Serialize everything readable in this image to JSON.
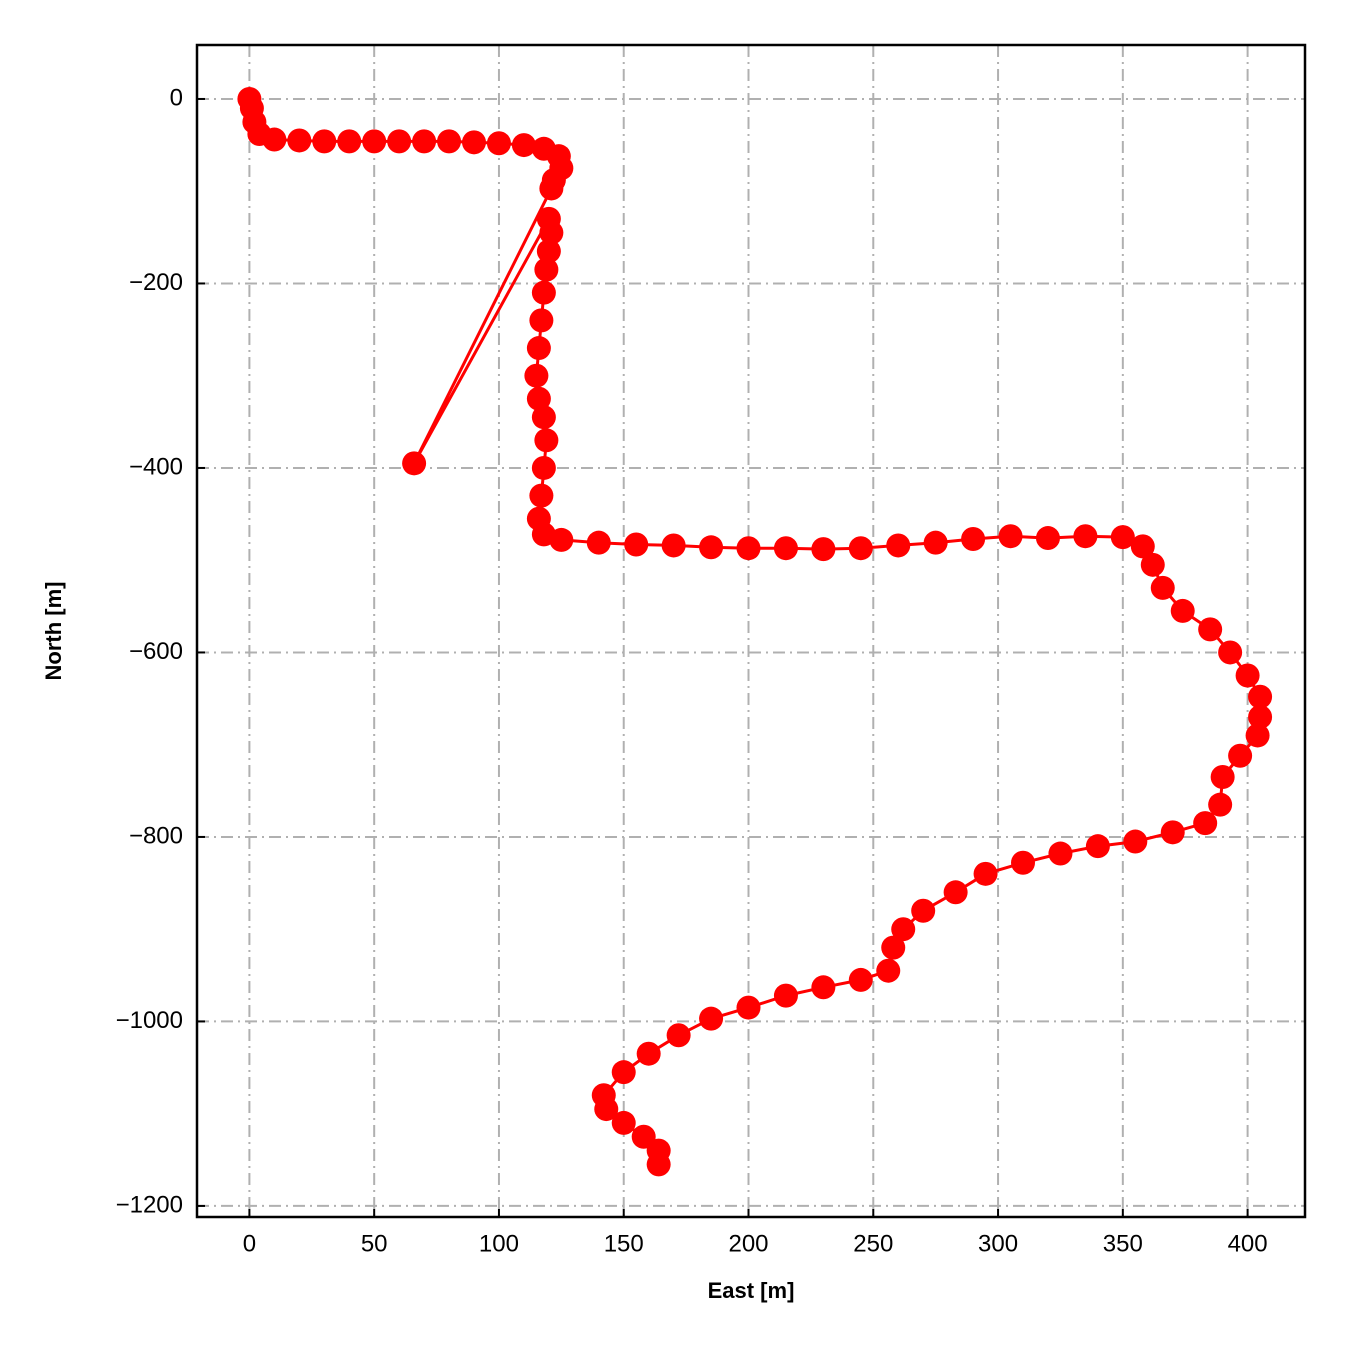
{
  "chart_data": {
    "type": "line",
    "xlabel": "East [m]",
    "ylabel": "North [m]",
    "x": [
      0,
      1,
      2,
      4,
      10,
      20,
      30,
      40,
      50,
      60,
      70,
      80,
      90,
      100,
      110,
      118,
      124,
      125,
      122,
      121,
      66,
      120,
      121,
      120,
      119,
      118,
      117,
      116,
      115,
      116,
      118,
      119,
      118,
      117,
      116,
      118,
      125,
      140,
      155,
      170,
      185,
      200,
      215,
      230,
      245,
      260,
      275,
      290,
      305,
      320,
      335,
      350,
      358,
      362,
      366,
      374,
      385,
      393,
      400,
      405,
      405,
      404,
      397,
      390,
      389,
      383,
      370,
      355,
      340,
      325,
      310,
      295,
      283,
      270,
      262,
      258,
      256,
      245,
      230,
      215,
      200,
      185,
      172,
      160,
      150,
      142,
      143,
      150,
      158,
      164,
      164
    ],
    "values": [
      0,
      -10,
      -25,
      -38,
      -44,
      -45,
      -46,
      -46,
      -46,
      -46,
      -46,
      -46,
      -47,
      -48,
      -50,
      -54,
      -62,
      -75,
      -88,
      -97,
      -395,
      -130,
      -145,
      -165,
      -185,
      -210,
      -240,
      -270,
      -300,
      -325,
      -345,
      -370,
      -400,
      -430,
      -455,
      -472,
      -478,
      -481,
      -483,
      -484,
      -486,
      -487,
      -487,
      -488,
      -487,
      -484,
      -481,
      -477,
      -474,
      -476,
      -474,
      -475,
      -485,
      -505,
      -530,
      -555,
      -575,
      -600,
      -625,
      -648,
      -670,
      -690,
      -712,
      -735,
      -765,
      -785,
      -795,
      -805,
      -810,
      -818,
      -828,
      -840,
      -860,
      -880,
      -900,
      -920,
      -945,
      -955,
      -963,
      -972,
      -985,
      -997,
      -1015,
      -1035,
      -1055,
      -1080,
      -1095,
      -1110,
      -1125,
      -1140,
      -1155
    ],
    "color": "#ff0000",
    "xlim": [
      -21,
      423
    ],
    "ylim": [
      -1212,
      58.5
    ],
    "xticks": [
      0,
      50,
      100,
      150,
      200,
      250,
      300,
      350,
      400
    ],
    "yticks": [
      0,
      {
        "value": -200,
        "label": "−200"
      },
      {
        "value": -400,
        "label": "−400"
      },
      {
        "value": -600,
        "label": "−600"
      },
      {
        "value": -800,
        "label": "−800"
      },
      {
        "value": -1000,
        "label": "−1000"
      },
      {
        "value": -1200,
        "label": "−1200"
      }
    ],
    "grid": true
  }
}
